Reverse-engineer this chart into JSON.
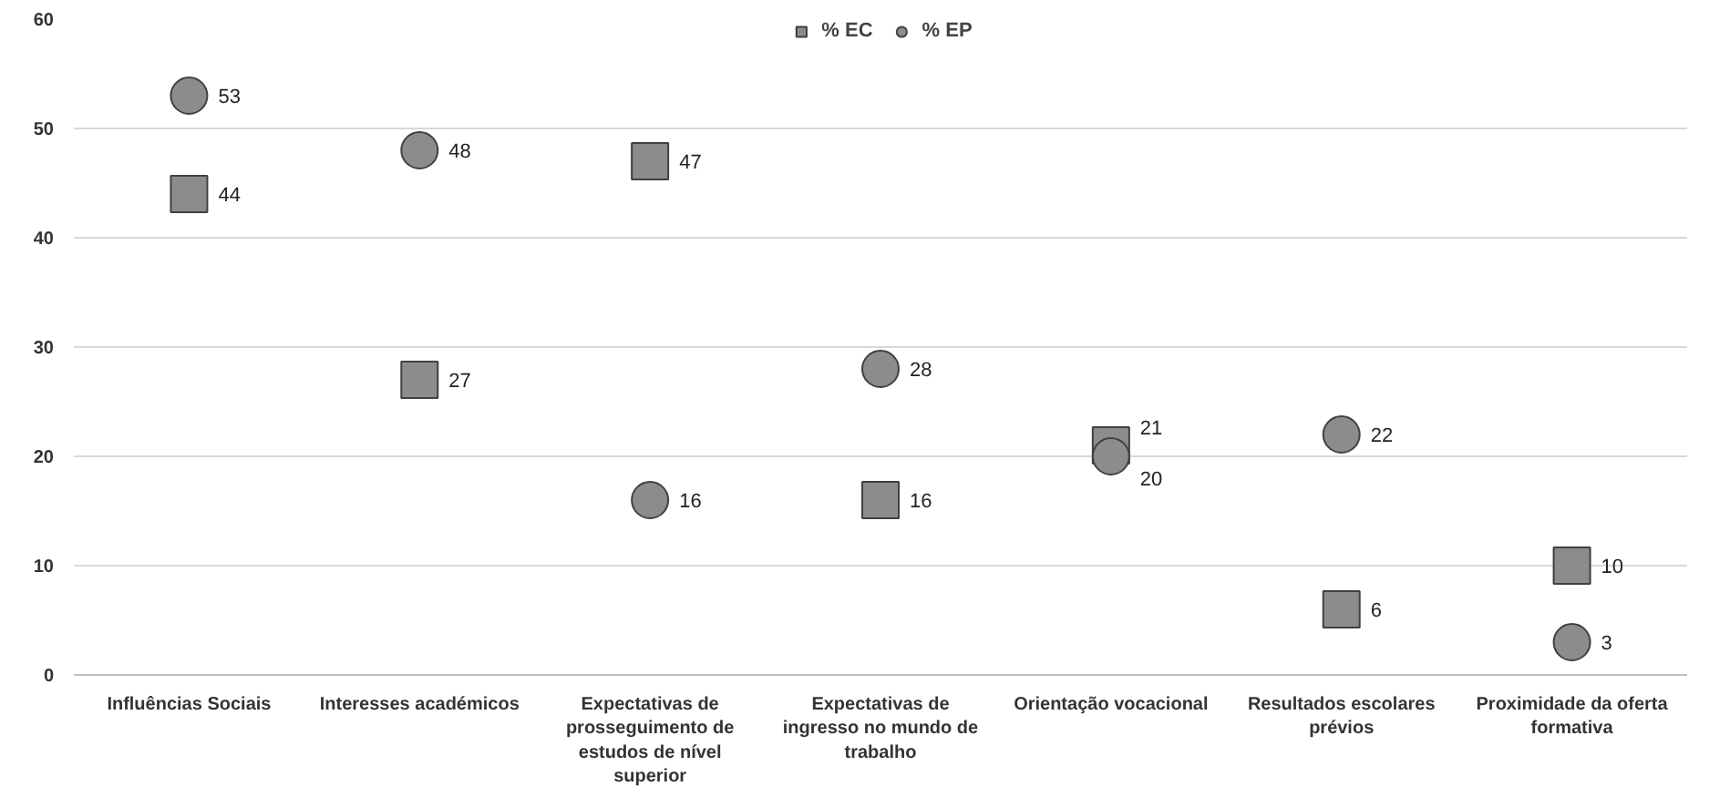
{
  "chart_data": {
    "type": "scatter",
    "categories": [
      "Influências Sociais",
      "Interesses académicos",
      "Expectativas de prosseguimento de estudos de nível superior",
      "Expectativas de ingresso no mundo de trabalho",
      "Orientação vocacional",
      "Resultados escolares prévios",
      "Proximidade da oferta formativa"
    ],
    "series": [
      {
        "name": "% EC",
        "color": "#8c8c8c",
        "marker": "square",
        "values": [
          44,
          27,
          47,
          16,
          21,
          6,
          10
        ]
      },
      {
        "name": "% EP",
        "color": "#8c8c8c",
        "marker": "circle",
        "values": [
          53,
          48,
          16,
          28,
          20,
          22,
          3
        ]
      }
    ],
    "ylim": [
      0,
      60
    ],
    "yticks": [
      0,
      10,
      20,
      30,
      40,
      50,
      60
    ],
    "grid": "y",
    "legend": "top",
    "data_labels": true
  }
}
